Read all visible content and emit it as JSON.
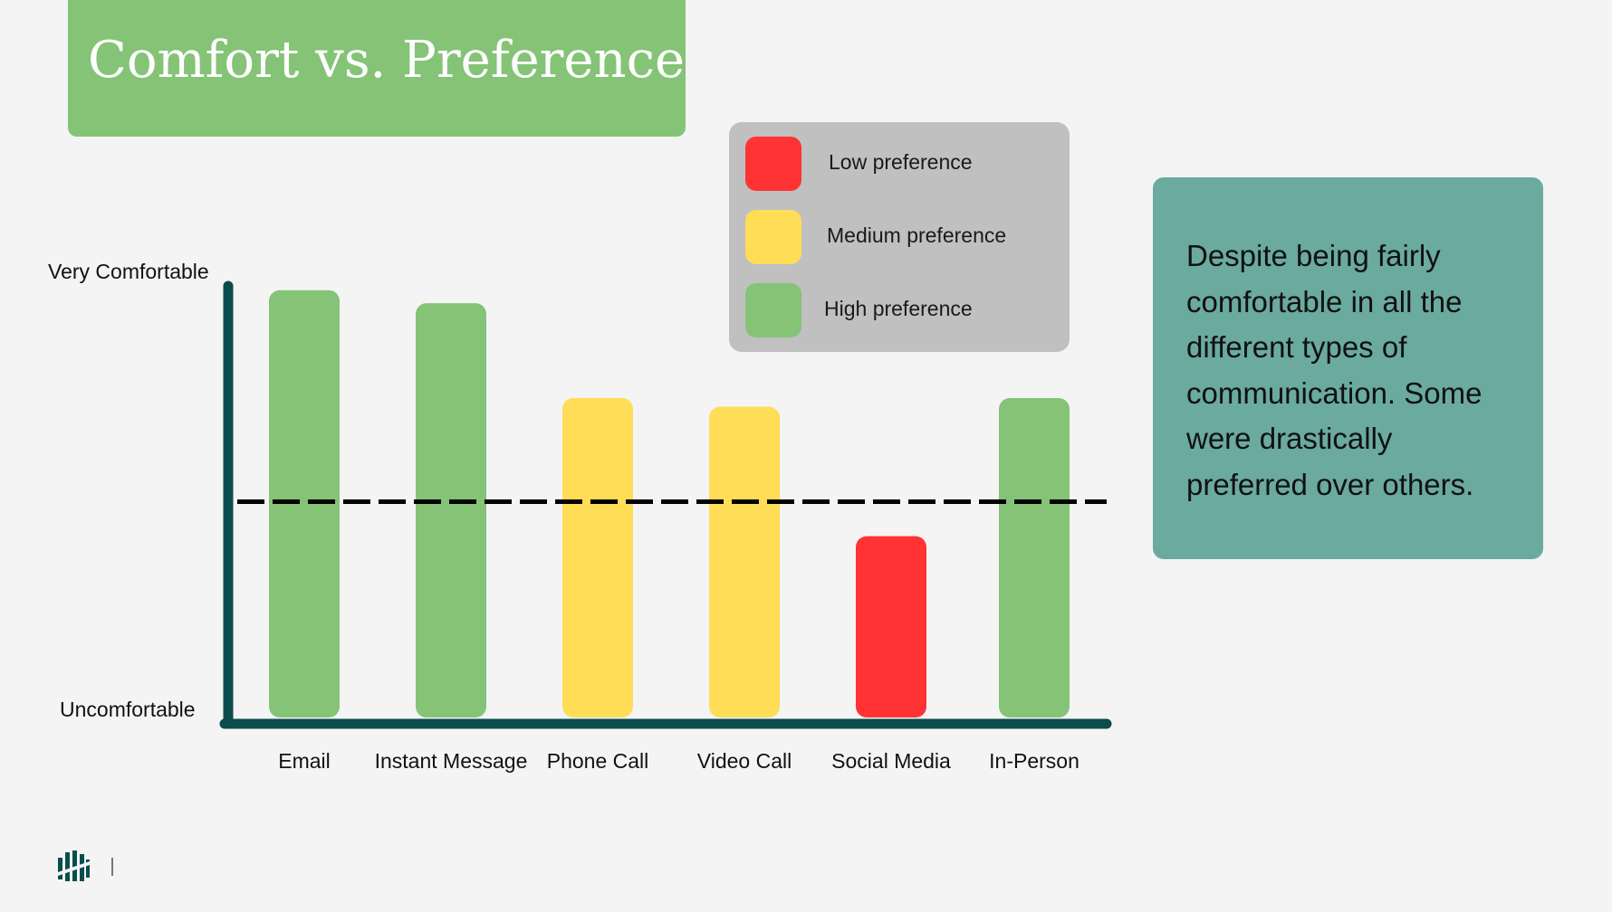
{
  "slide": {
    "title": "Comfort vs. Preference",
    "note": "Despite being fairly comfortable in all the different types of communication. Some were drastically preferred over others."
  },
  "legend": {
    "items": [
      {
        "label": "Low preference",
        "color": "#ff3333"
      },
      {
        "label": "Medium preference",
        "color": "#ffdd57"
      },
      {
        "label": "High preference",
        "color": "#85c377"
      }
    ]
  },
  "colors": {
    "accent": "#85c377",
    "note_bg": "#6aaa9f",
    "axis": "#0b4d4d",
    "high": "#85c377",
    "medium": "#ffdd57",
    "low": "#ff3333"
  },
  "logo_icon": "company-logo-icon",
  "chart_data": {
    "type": "bar",
    "title": "",
    "categories": [
      "Email",
      "Instant Message",
      "Phone Call",
      "Video Call",
      "Social Media",
      "In-Person"
    ],
    "values": [
      0.99,
      0.96,
      0.74,
      0.72,
      0.42,
      0.74
    ],
    "preference": [
      "High preference",
      "High preference",
      "Medium preference",
      "Medium preference",
      "Low preference",
      "High preference"
    ],
    "y_tick_labels": [
      "Uncomfortable",
      "Very Comfortable"
    ],
    "ylim": [
      0,
      1
    ],
    "reference_line": 0.5,
    "reference_line_style": "dashed",
    "grid": false,
    "legend_position": "top-center"
  }
}
